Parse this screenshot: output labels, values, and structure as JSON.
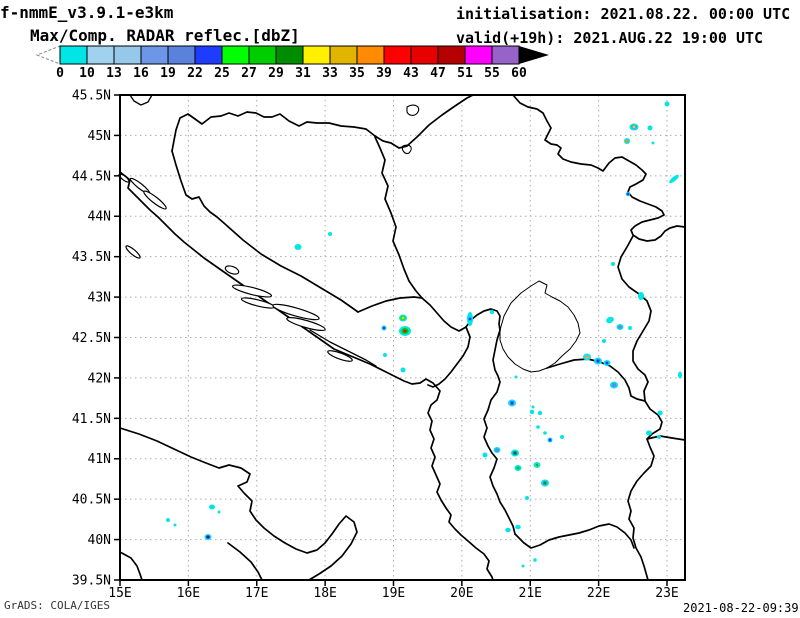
{
  "header": {
    "model_title": "f-nmmE_v3.9.1-e3km",
    "product_title": "Max/Comp. RADAR reflec.[dbZ]",
    "init_line": "initialisation: 2021.08.22. 00:00 UTC",
    "valid_line": "valid(+19h): 2021.AUG.22 19:00 UTC"
  },
  "footer": {
    "left": "GrADS: COLA/IGES",
    "right": "2021-08-22-09:39"
  },
  "colorbar": {
    "tick_labels": [
      "0",
      "10",
      "13",
      "16",
      "19",
      "22",
      "25",
      "27",
      "29",
      "31",
      "33",
      "35",
      "39",
      "43",
      "47",
      "51",
      "55",
      "60"
    ],
    "segment_colors": [
      "#00e6e6",
      "#a0d2f0",
      "#96c8ea",
      "#6e96e6",
      "#5a82dc",
      "#1e3cff",
      "#00ff00",
      "#00cd00",
      "#008c00",
      "#fff000",
      "#e1b400",
      "#ff8c00",
      "#ff0000",
      "#e60000",
      "#b40000",
      "#ff00ff",
      "#9664c8"
    ],
    "under_arrow_style": "dashed-outline",
    "over_arrow_color": "#000000",
    "units": "dBZ"
  },
  "map": {
    "extent": {
      "lon_min": 15,
      "lon_max": 23.26,
      "lat_min": 39.5,
      "lat_max": 45.5
    },
    "lon_ticks": [
      [
        "15E",
        15
      ],
      [
        "16E",
        16
      ],
      [
        "17E",
        17
      ],
      [
        "18E",
        18
      ],
      [
        "19E",
        19
      ],
      [
        "20E",
        20
      ],
      [
        "21E",
        21
      ],
      [
        "22E",
        22
      ],
      [
        "23E",
        23
      ]
    ],
    "lat_ticks": [
      [
        "45.5N",
        45.5
      ],
      [
        "45N",
        45
      ],
      [
        "44.5N",
        44.5
      ],
      [
        "44N",
        44
      ],
      [
        "43.5N",
        43.5
      ],
      [
        "43N",
        43
      ],
      [
        "42.5N",
        42.5
      ],
      [
        "42N",
        42
      ],
      [
        "41.5N",
        41.5
      ],
      [
        "41N",
        41
      ],
      [
        "40.5N",
        40.5
      ],
      [
        "40N",
        40
      ],
      [
        "39.5N",
        39.5
      ]
    ],
    "grid_lons": [
      16,
      17,
      18,
      19,
      20,
      21,
      22,
      23
    ],
    "grid_lats": [
      45,
      44.5,
      44,
      43.5,
      43,
      42.5,
      42,
      41.5,
      41,
      40.5,
      40
    ],
    "grid_color": "#ababab",
    "frame_color": "#000000"
  },
  "echoes": {
    "base_color": "#00e6e6",
    "fields": [
      "x",
      "y",
      "rx",
      "ry",
      "rot",
      "mid_color",
      "core_color"
    ],
    "cells": [
      [
        667,
        104,
        2.5,
        2.5,
        0,
        null,
        null
      ],
      [
        634,
        127,
        4.5,
        3.5,
        0,
        "#5a8cf0",
        "#e6dc00"
      ],
      [
        650,
        128,
        2.5,
        2.5,
        0,
        null,
        null
      ],
      [
        627,
        141,
        3,
        3,
        0,
        null,
        "#ff8c00"
      ],
      [
        653,
        143,
        1.5,
        1.5,
        0,
        null,
        null
      ],
      [
        674,
        179,
        6,
        2.2,
        -40,
        null,
        null
      ],
      [
        628,
        194,
        2.2,
        2.2,
        0,
        null,
        "#1e3cff"
      ],
      [
        613,
        264,
        2,
        2,
        0,
        null,
        null
      ],
      [
        641,
        296,
        3,
        4,
        0,
        null,
        null
      ],
      [
        610,
        320,
        4,
        3,
        -25,
        null,
        null
      ],
      [
        620,
        327,
        3.5,
        3,
        0,
        "#5a8cf0",
        null
      ],
      [
        630,
        328,
        2,
        2,
        0,
        null,
        null
      ],
      [
        604,
        341,
        2,
        2,
        0,
        null,
        null
      ],
      [
        587,
        357,
        4,
        3.5,
        0,
        "#64c8ff",
        "#ffa000"
      ],
      [
        598,
        361,
        4,
        3.5,
        0,
        "#5a8cf0",
        "#1e3cff"
      ],
      [
        607,
        363,
        3.5,
        3,
        0,
        null,
        "#1e3cff"
      ],
      [
        614,
        385,
        4,
        3.5,
        0,
        "#5a8cf0",
        null
      ],
      [
        680,
        375,
        2,
        3.5,
        0,
        null,
        null
      ],
      [
        660,
        413,
        2.5,
        2.5,
        0,
        null,
        null
      ],
      [
        649,
        433,
        3,
        2.5,
        0,
        null,
        null
      ],
      [
        659,
        437,
        2,
        2,
        0,
        null,
        null
      ],
      [
        562,
        437,
        2,
        2,
        0,
        null,
        null
      ],
      [
        527,
        498,
        2,
        2,
        0,
        null,
        null
      ],
      [
        508,
        530,
        2.8,
        2.2,
        0,
        null,
        null
      ],
      [
        518,
        527,
        2.8,
        2.2,
        0,
        null,
        null
      ],
      [
        535,
        560,
        1.8,
        1.8,
        0,
        null,
        null
      ],
      [
        523,
        566,
        1.5,
        1.5,
        0,
        null,
        null
      ],
      [
        512,
        403,
        4,
        3.5,
        0,
        "#5a8cf0",
        "#1e3cff"
      ],
      [
        532,
        412,
        2.2,
        2.2,
        0,
        null,
        null
      ],
      [
        540,
        413,
        2.2,
        2.2,
        0,
        null,
        null
      ],
      [
        533,
        407,
        1.5,
        1.5,
        0,
        null,
        null
      ],
      [
        538,
        427,
        1.8,
        1.8,
        0,
        null,
        null
      ],
      [
        545,
        433,
        1.8,
        1.8,
        0,
        null,
        null
      ],
      [
        550,
        440,
        2.5,
        2.5,
        0,
        null,
        "#1e3cff"
      ],
      [
        485,
        455,
        2.5,
        2.5,
        0,
        null,
        null
      ],
      [
        497,
        450,
        3.5,
        3,
        0,
        "#5a8cf0",
        null
      ],
      [
        515,
        453,
        4,
        3.5,
        0,
        "#00c800",
        "#1e3cff"
      ],
      [
        518,
        468,
        3.5,
        3,
        0,
        null,
        "#00c800"
      ],
      [
        537,
        465,
        3.5,
        3,
        0,
        "#64c8ff",
        "#00c800"
      ],
      [
        545,
        483,
        4,
        3.5,
        0,
        "#5a8cf0",
        "#00a000"
      ],
      [
        403,
        318,
        4,
        3.5,
        0,
        "#00dc00",
        "#e6dc00"
      ],
      [
        405,
        331,
        6,
        5,
        0,
        "#00c800",
        "#ff0000"
      ],
      [
        384,
        328,
        2.5,
        2.5,
        0,
        null,
        "#1e3cff"
      ],
      [
        385,
        355,
        2,
        2,
        0,
        null,
        null
      ],
      [
        403,
        370,
        2.5,
        2.5,
        0,
        null,
        null
      ],
      [
        470,
        319,
        3,
        7,
        0,
        null,
        "#1e3cff"
      ],
      [
        492,
        312,
        2.2,
        2.2,
        0,
        null,
        null
      ],
      [
        298,
        247,
        3.5,
        3,
        0,
        null,
        null
      ],
      [
        330,
        234,
        2,
        2,
        0,
        null,
        null
      ],
      [
        168,
        520,
        2,
        2,
        0,
        null,
        null
      ],
      [
        175,
        525,
        1.5,
        1.5,
        0,
        null,
        null
      ],
      [
        212,
        507,
        3,
        2.5,
        0,
        null,
        null
      ],
      [
        219,
        512,
        1.5,
        1.5,
        0,
        null,
        null
      ],
      [
        208,
        537,
        3.5,
        3,
        0,
        "#3c64ff",
        "#1e1e96"
      ],
      [
        516,
        377,
        1.5,
        1.5,
        0,
        null,
        null
      ]
    ]
  }
}
